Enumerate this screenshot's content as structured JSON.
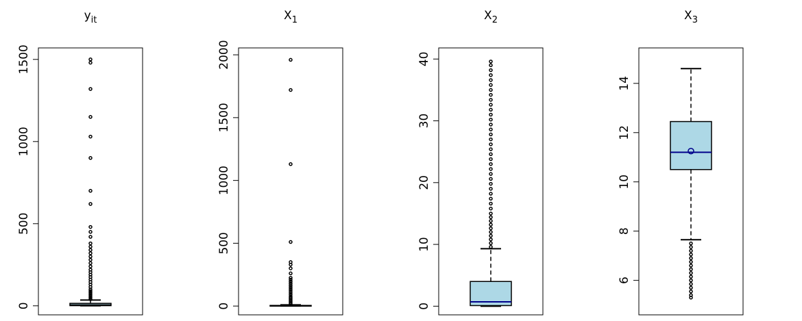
{
  "chart_data": [
    {
      "type": "box",
      "title": "y",
      "title_subscript": "it",
      "ylim": [
        -55,
        1570
      ],
      "yticks": [
        0,
        500,
        1000,
        1500
      ],
      "color": "#add8e6",
      "median_color": "#000000",
      "box": {
        "whisker_low": 0,
        "q1": 1,
        "median": 5,
        "q3": 15,
        "whisker_high": 35
      },
      "outliers": [
        40,
        50,
        60,
        70,
        80,
        90,
        100,
        115,
        130,
        145,
        160,
        175,
        190,
        205,
        220,
        240,
        260,
        280,
        300,
        320,
        340,
        360,
        380,
        420,
        450,
        480,
        620,
        700,
        900,
        1030,
        1150,
        1320,
        1480,
        1500
      ]
    },
    {
      "type": "box",
      "title": "X",
      "title_subscript": "1",
      "ylim": [
        -70,
        2055
      ],
      "yticks": [
        0,
        500,
        1000,
        1500,
        2000
      ],
      "color": "#add8e6",
      "median_color": "#000000",
      "box": {
        "whisker_low": 0,
        "q1": 0.5,
        "median": 2,
        "q3": 5,
        "whisker_high": 10
      },
      "outliers": [
        15,
        25,
        35,
        45,
        55,
        65,
        75,
        90,
        105,
        120,
        135,
        150,
        165,
        180,
        195,
        210,
        225,
        260,
        300,
        330,
        350,
        510,
        1130,
        1720,
        1960
      ]
    },
    {
      "type": "box",
      "title": "X",
      "title_subscript": "2",
      "ylim": [
        -1.4,
        41.8
      ],
      "yticks": [
        0,
        10,
        20,
        30,
        40
      ],
      "color": "#add8e6",
      "median_color": "#00008b",
      "box": {
        "whisker_low": 0,
        "q1": 0.1,
        "median": 0.7,
        "q3": 4,
        "whisker_high": 9.3
      },
      "outliers": [
        9.6,
        10.2,
        10.8,
        11.4,
        12,
        12.6,
        13.2,
        13.8,
        14.4,
        15,
        15.8,
        16.6,
        17.4,
        18.2,
        19,
        19.8,
        20.6,
        21.4,
        22.2,
        23,
        23.8,
        24.6,
        25.4,
        26.2,
        27,
        27.8,
        28.6,
        29.4,
        30.2,
        31,
        31.8,
        32.6,
        33.4,
        34.2,
        35,
        35.8,
        36.6,
        37.4,
        38.2,
        39,
        39.6
      ]
    },
    {
      "type": "box",
      "title": "X",
      "title_subscript": "3",
      "ylim": [
        4.6,
        15.44
      ],
      "yticks": [
        6,
        8,
        10,
        12,
        14
      ],
      "color": "#add8e6",
      "median_color": "#00008b",
      "box": {
        "whisker_low": 7.65,
        "q1": 10.5,
        "median": 11.2,
        "q3": 12.45,
        "whisker_high": 14.6
      },
      "mean": 11.25,
      "outliers": [
        7.5,
        7.35,
        7.2,
        7.05,
        6.9,
        6.75,
        6.6,
        6.45,
        6.3,
        6.15,
        6.0,
        5.85,
        5.7,
        5.55,
        5.4,
        5.3
      ]
    }
  ]
}
